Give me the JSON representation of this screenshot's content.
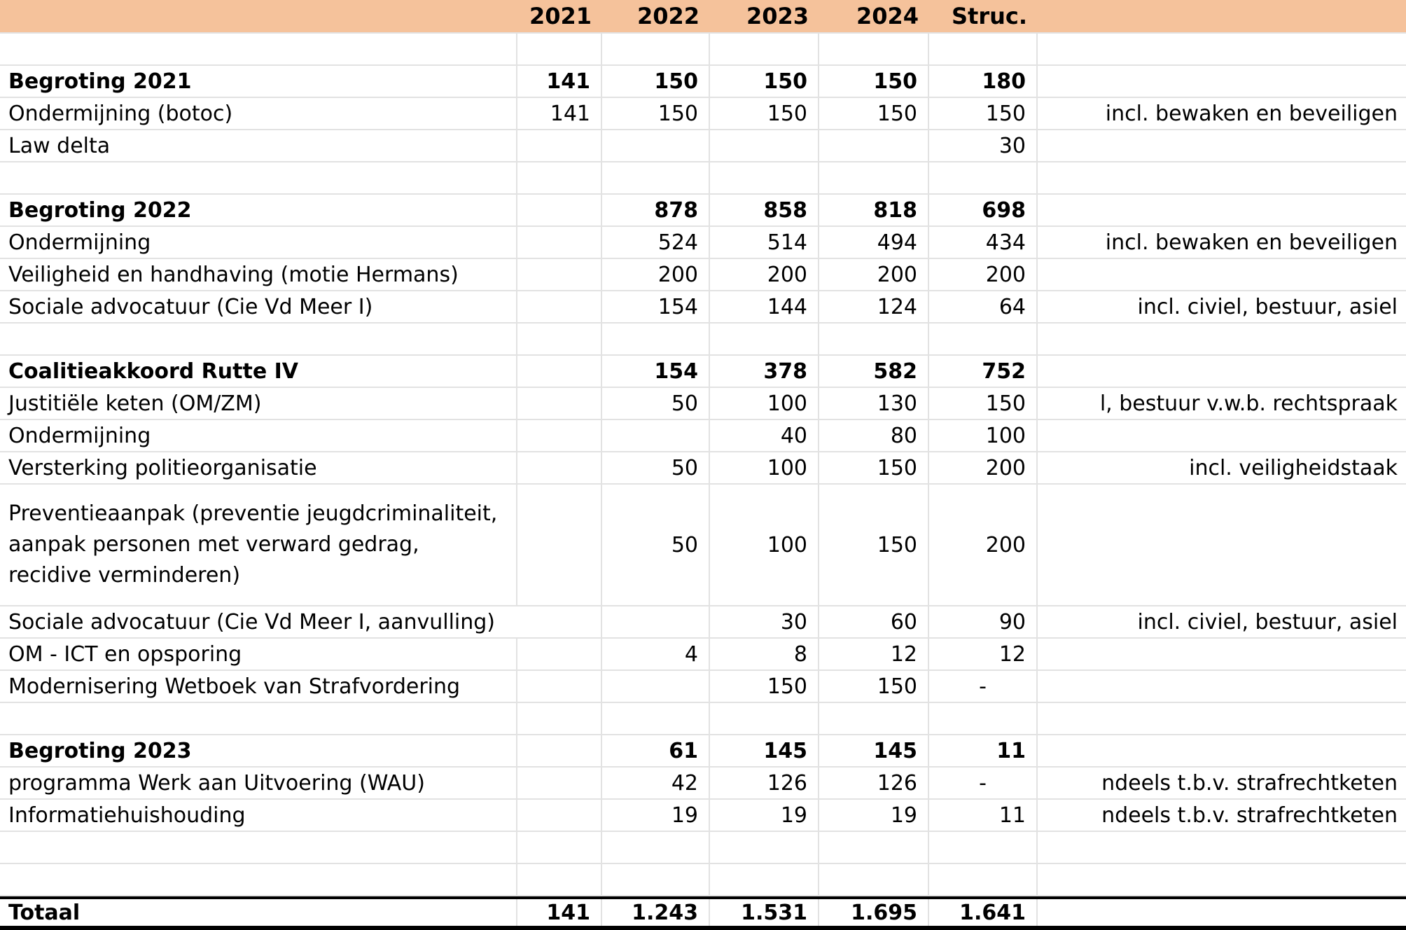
{
  "meta": {
    "description": "Dutch budget table: extra middelen per begroting, bedragen per jaar",
    "colors": {
      "header_bg": "#F5C29B",
      "gridline": "#E2E2E2",
      "text": "#000000",
      "background": "#FFFFFF",
      "total_border": "#000000"
    }
  },
  "header": {
    "cells": [
      "",
      "2021",
      "2022",
      "2023",
      "2024",
      "Struc.",
      ""
    ]
  },
  "columns": [
    "label",
    "2021",
    "2022",
    "2023",
    "2024",
    "struc",
    "note"
  ],
  "rows": [
    {
      "kind": "blank",
      "label": "",
      "values": [
        "",
        "",
        "",
        "",
        ""
      ],
      "note": ""
    },
    {
      "kind": "section",
      "label": "Begroting 2021",
      "values": [
        "141",
        "150",
        "150",
        "150",
        "180"
      ],
      "note": ""
    },
    {
      "kind": "item",
      "label": "Ondermijning (botoc)",
      "values": [
        "141",
        "150",
        "150",
        "150",
        "150"
      ],
      "note": "incl. bewaken en beveiligen"
    },
    {
      "kind": "item",
      "label": "Law delta",
      "values": [
        "",
        "",
        "",
        "",
        "30"
      ],
      "note": ""
    },
    {
      "kind": "blank",
      "label": "",
      "values": [
        "",
        "",
        "",
        "",
        ""
      ],
      "note": ""
    },
    {
      "kind": "section",
      "label": "Begroting 2022",
      "values": [
        "",
        "878",
        "858",
        "818",
        "698"
      ],
      "note": ""
    },
    {
      "kind": "item",
      "label": "Ondermijning",
      "values": [
        "",
        "524",
        "514",
        "494",
        "434"
      ],
      "note": "incl. bewaken en beveiligen"
    },
    {
      "kind": "item",
      "label": "Veiligheid en handhaving (motie Hermans)",
      "values": [
        "",
        "200",
        "200",
        "200",
        "200"
      ],
      "note": ""
    },
    {
      "kind": "item",
      "label": "Sociale advocatuur (Cie Vd Meer I)",
      "values": [
        "",
        "154",
        "144",
        "124",
        "64"
      ],
      "note": "incl. civiel, bestuur, asiel"
    },
    {
      "kind": "blank",
      "label": "",
      "values": [
        "",
        "",
        "",
        "",
        ""
      ],
      "note": ""
    },
    {
      "kind": "section",
      "label": "Coalitieakkoord Rutte IV",
      "values": [
        "",
        "154",
        "378",
        "582",
        "752"
      ],
      "note": ""
    },
    {
      "kind": "item",
      "label": "Justitiële keten (OM/ZM)",
      "values": [
        "",
        "50",
        "100",
        "130",
        "150"
      ],
      "note": "l, bestuur v.w.b. rechtspraak"
    },
    {
      "kind": "item",
      "label": "Ondermijning",
      "values": [
        "",
        "",
        "40",
        "80",
        "100"
      ],
      "note": ""
    },
    {
      "kind": "item",
      "label": "Versterking politieorganisatie",
      "values": [
        "",
        "50",
        "100",
        "150",
        "200"
      ],
      "note": "incl. veiligheidstaak"
    },
    {
      "kind": "item",
      "tall": true,
      "label": "Preventieaanpak (preventie jeugdcriminaliteit, aanpak personen met verward gedrag, recidive verminderen)",
      "values": [
        "",
        "50",
        "100",
        "150",
        "200"
      ],
      "note": ""
    },
    {
      "kind": "item",
      "spill": true,
      "label": "Sociale advocatuur (Cie Vd Meer I, aanvulling)",
      "values": [
        "",
        "",
        "30",
        "60",
        "90"
      ],
      "note": "incl. civiel, bestuur, asiel"
    },
    {
      "kind": "item",
      "label": "OM - ICT en opsporing",
      "values": [
        "",
        "4",
        "8",
        "12",
        "12"
      ],
      "note": ""
    },
    {
      "kind": "item",
      "label": "Modernisering Wetboek van Strafvordering",
      "values": [
        "",
        "",
        "150",
        "150",
        "-"
      ],
      "note": ""
    },
    {
      "kind": "blank",
      "label": "",
      "values": [
        "",
        "",
        "",
        "",
        ""
      ],
      "note": ""
    },
    {
      "kind": "section",
      "label": "Begroting 2023",
      "values": [
        "",
        "61",
        "145",
        "145",
        "11"
      ],
      "note": ""
    },
    {
      "kind": "item",
      "label": "programma Werk aan Uitvoering (WAU)",
      "values": [
        "",
        "42",
        "126",
        "126",
        "-"
      ],
      "note": "ndeels t.b.v. strafrechtketen"
    },
    {
      "kind": "item",
      "label": "Informatiehuishouding",
      "values": [
        "",
        "19",
        "19",
        "19",
        "11"
      ],
      "note": "ndeels t.b.v. strafrechtketen"
    },
    {
      "kind": "blank",
      "label": "",
      "values": [
        "",
        "",
        "",
        "",
        ""
      ],
      "note": ""
    },
    {
      "kind": "blank",
      "label": "",
      "values": [
        "",
        "",
        "",
        "",
        ""
      ],
      "note": ""
    },
    {
      "kind": "total",
      "label": "Totaal",
      "values": [
        "141",
        "1.243",
        "1.531",
        "1.695",
        "1.641"
      ],
      "note": ""
    }
  ]
}
